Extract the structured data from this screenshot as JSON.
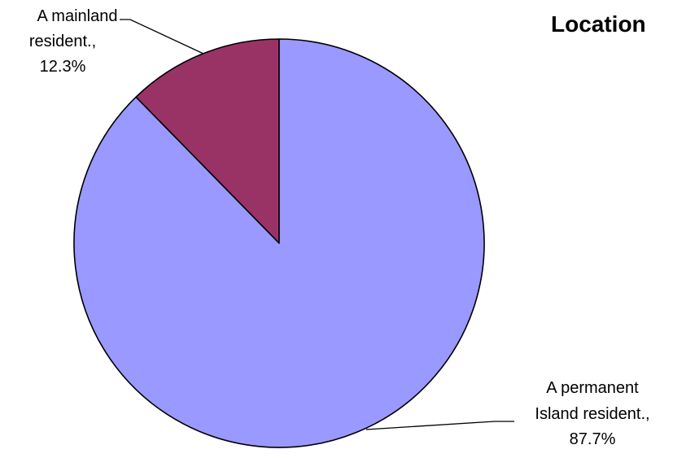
{
  "chart_data": {
    "type": "pie",
    "title": "Location",
    "slices": [
      {
        "label": "A mainland resident.",
        "value": 12.3,
        "value_label": "12.3%",
        "color": "#993366"
      },
      {
        "label": "A permanent Island resident.",
        "value": 87.7,
        "value_label": "87.7%",
        "color": "#9999FF"
      }
    ],
    "start_angle": "12 o'clock",
    "direction": "counterclockwise",
    "legend": "none",
    "data_labels": "outside with leader lines"
  }
}
